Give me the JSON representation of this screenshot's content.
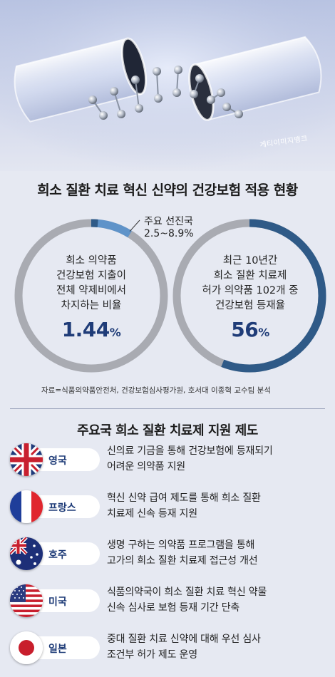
{
  "hero": {
    "credit": "게티이미지뱅크"
  },
  "title": "희소 질환 치료 혁신 신약의 건강보험 적용 현황",
  "left_ring": {
    "fraction": 0.0144,
    "callout_fraction": 0.089,
    "callout_label": "주요 선진국",
    "callout_value": "2.5~8.9%",
    "lines": [
      "희소 의약품",
      "건강보험 지출이",
      "전체 약제비에서",
      "차지하는 비율"
    ],
    "value": "1.44",
    "unit": "%"
  },
  "right_ring": {
    "fraction": 0.56,
    "lines": [
      "최근 10년간",
      "희소 질환 치료제",
      "허가 의약품 102개 중",
      "건강보험 등재율"
    ],
    "value": "56",
    "unit": "%"
  },
  "source": "자료=식품의약품안전처, 건강보험심사평가원, 호서대 이종혁 교수팀 분석",
  "section_title": "주요국 희소 질환 치료제 지원 제도",
  "countries": [
    {
      "name": "영국",
      "flag": "uk-flag-icon",
      "desc": [
        "신의료 기금을 통해 건강보험에 등재되기",
        "어려운 의약품 지원"
      ]
    },
    {
      "name": "프랑스",
      "flag": "france-flag-icon",
      "desc": [
        "혁신 신약 급여 제도를 통해 희소 질환",
        "치료제 신속 등재 지원"
      ]
    },
    {
      "name": "호주",
      "flag": "australia-flag-icon",
      "desc": [
        "생명 구하는 의약품 프로그램을 통해",
        "고가의 희소 질환 치료제 접근성 개선"
      ]
    },
    {
      "name": "미국",
      "flag": "usa-flag-icon",
      "desc": [
        "식품의약국이 희소 질환 치료 혁신 약물",
        "신속 심사로 보험 등재 기간 단축"
      ]
    },
    {
      "name": "일본",
      "flag": "japan-flag-icon",
      "desc": [
        "중대 질환 치료 신약에 대해 우선 심사",
        "조건부 허가 제도 운영"
      ]
    }
  ],
  "colors": {
    "ring_track": "#a9abb2",
    "ring_fill": "#2f5a87",
    "callout_fill": "#5f93c9",
    "accent_text": "#1f3c78",
    "background": "#e6e9f2"
  }
}
